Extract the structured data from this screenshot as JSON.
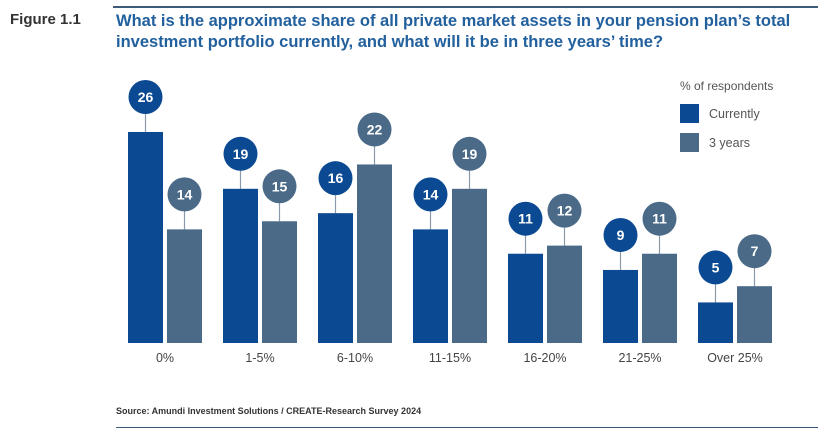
{
  "figure_label": "Figure 1.1",
  "title": "What is the approximate share of all private market assets in your pension plan’s total investment portfolio currently, and what will it be in three years’ time?",
  "source": "Source: Amundi Investment Solutions / CREATE-Research Survey 2024",
  "chart_data": {
    "type": "bar",
    "title": "What is the approximate share of all private market assets in your pension plan’s total investment portfolio currently, and what will it be in three years’ time?",
    "categories": [
      "0%",
      "1-5%",
      "6-10%",
      "11-15%",
      "16-20%",
      "21-25%",
      "Over 25%"
    ],
    "series": [
      {
        "name": "Currently",
        "color": "#0b4a92",
        "values": [
          26,
          19,
          16,
          14,
          11,
          9,
          5
        ]
      },
      {
        "name": "3 years",
        "color": "#4a6a88",
        "values": [
          14,
          15,
          22,
          19,
          12,
          11,
          7
        ]
      }
    ],
    "legend_title": "% of respondents",
    "legend_position": "top-right",
    "ylim": [
      0,
      26
    ],
    "grid": false,
    "data_labels": true
  }
}
